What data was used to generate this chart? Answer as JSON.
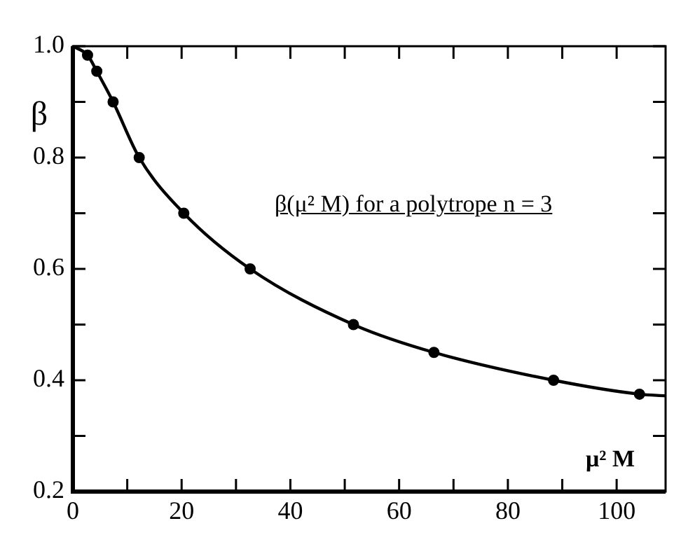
{
  "chart_data": {
    "type": "line",
    "xlabel": "μ² M",
    "ylabel": "β",
    "annotations": [
      "β(μ² M) for a polytrope n = 3"
    ],
    "series": [
      {
        "color": "#000000",
        "marker": "none",
        "x": [
          0,
          2.7,
          4.4,
          7.4,
          12.2,
          20.4,
          32.6,
          51.6,
          66.4,
          88.4,
          104.2,
          109
        ],
        "values": [
          1.0,
          0.984,
          0.955,
          0.9,
          0.8,
          0.7,
          0.6,
          0.5,
          0.45,
          0.4,
          0.375,
          0.372
        ]
      },
      {
        "type": "scatter",
        "color": "#000000",
        "marker": "circle",
        "x": [
          2.7,
          4.4,
          7.4,
          12.2,
          20.4,
          32.6,
          51.6,
          66.4,
          88.4,
          104.2
        ],
        "values": [
          0.984,
          0.955,
          0.9,
          0.8,
          0.7,
          0.6,
          0.5,
          0.45,
          0.4,
          0.375
        ]
      }
    ],
    "xlim": [
      0,
      109
    ],
    "ylim": [
      0.2,
      1.0
    ],
    "xticks": [
      0,
      {
        "value": 10,
        "label": null
      },
      20,
      {
        "value": 30,
        "label": null
      },
      40,
      {
        "value": 50,
        "label": null
      },
      60,
      {
        "value": 70,
        "label": null
      },
      80,
      {
        "value": 90,
        "label": null
      },
      100
    ],
    "yticks": [
      0.2,
      {
        "value": 0.3,
        "label": null
      },
      0.4,
      {
        "value": 0.5,
        "label": null
      },
      0.6,
      {
        "value": 0.7,
        "label": null
      },
      0.8,
      {
        "value": 0.9,
        "label": null
      },
      {
        "value": 1.0,
        "label": "1.0"
      }
    ]
  }
}
